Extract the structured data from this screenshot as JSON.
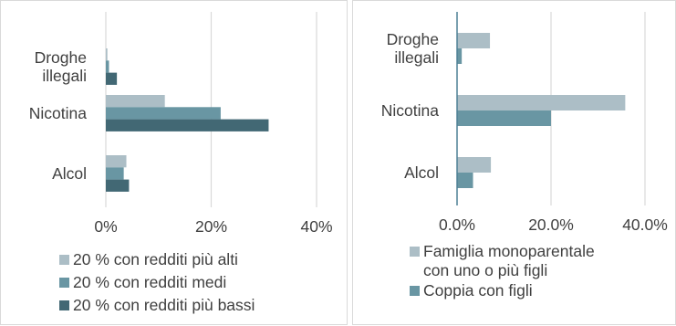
{
  "colors": {
    "series1": "#acbec6",
    "series2": "#6996a3",
    "series3": "#426874",
    "grid": "#d9d9d9",
    "axis": "#4f8196",
    "text": "#404040"
  },
  "chart_data": [
    {
      "type": "bar",
      "orientation": "horizontal",
      "categories": [
        [
          "Droghe",
          "illegali"
        ],
        [
          "Nicotina"
        ],
        [
          "Alcol"
        ]
      ],
      "series": [
        {
          "name": "20 % con redditi più alti",
          "values": [
            0.3,
            11.2,
            3.9
          ]
        },
        {
          "name": "20 % con redditi medi",
          "values": [
            0.6,
            21.8,
            3.4
          ]
        },
        {
          "name": "20 % con redditi più bassi",
          "values": [
            2.1,
            30.9,
            4.4
          ]
        }
      ],
      "xlim": [
        0,
        40
      ],
      "ticks": [
        0,
        20,
        40
      ],
      "tick_labels": [
        "0%",
        "20%",
        "40%"
      ],
      "grid": true,
      "legend_position": "bottom"
    },
    {
      "type": "bar",
      "orientation": "horizontal",
      "categories": [
        [
          "Droghe",
          "illegali"
        ],
        [
          "Nicotina"
        ],
        [
          "Alcol"
        ]
      ],
      "series": [
        {
          "name": "Famiglia monoparentale con uno o più figli",
          "name_lines": [
            "Famiglia monoparentale",
            "con uno o più figli"
          ],
          "values": [
            7.0,
            35.8,
            7.2
          ]
        },
        {
          "name": "Coppia con figli",
          "name_lines": [
            "Coppia con figli"
          ],
          "values": [
            1.0,
            20.0,
            3.4
          ]
        }
      ],
      "xlim": [
        0,
        40
      ],
      "ticks": [
        0,
        20,
        40
      ],
      "tick_labels": [
        "0.0%",
        "20.0%",
        "40.0%"
      ],
      "grid": true,
      "legend_position": "bottom"
    }
  ]
}
